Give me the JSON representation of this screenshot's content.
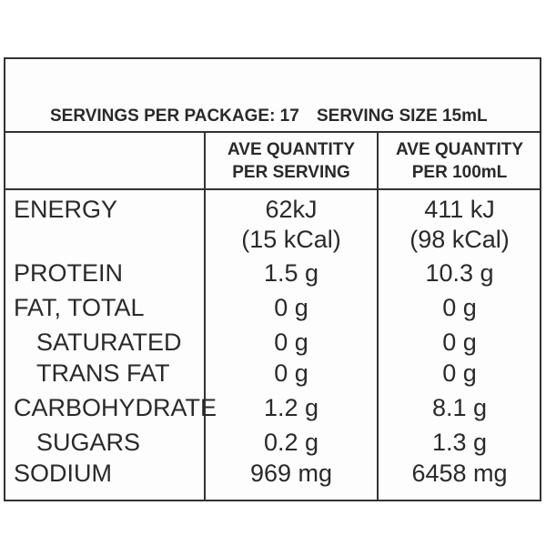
{
  "header": {
    "servings": "SERVINGS PER PACKAGE: 17",
    "serving_size": "SERVING SIZE 15mL"
  },
  "table": {
    "columns": [
      [
        "AVE QUANTITY",
        "PER SERVING"
      ],
      [
        "AVE QUANTITY",
        "PER 100mL"
      ]
    ],
    "rows": [
      {
        "label": "ENERGY",
        "per_serving": [
          "62kJ",
          "(15 kCal)"
        ],
        "per_100ml": [
          "411 kJ",
          "(98 kCal)"
        ]
      },
      {
        "label": "PROTEIN",
        "per_serving": "1.5 g",
        "per_100ml": "10.3 g"
      },
      {
        "label": "FAT, TOTAL",
        "per_serving": "0 g",
        "per_100ml": "0 g"
      },
      {
        "label": "SATURATED",
        "per_serving": "0 g",
        "per_100ml": "0 g"
      },
      {
        "label": "TRANS FAT",
        "per_serving": "0 g",
        "per_100ml": "0 g"
      },
      {
        "label": "CARBOHYDRATE",
        "per_serving": "1.2 g",
        "per_100ml": "8.1 g"
      },
      {
        "label": "SUGARS",
        "per_serving": "0.2 g",
        "per_100ml": "1.3 g"
      },
      {
        "label": "SODIUM",
        "per_serving": "969 mg",
        "per_100ml": "6458 mg"
      }
    ]
  }
}
